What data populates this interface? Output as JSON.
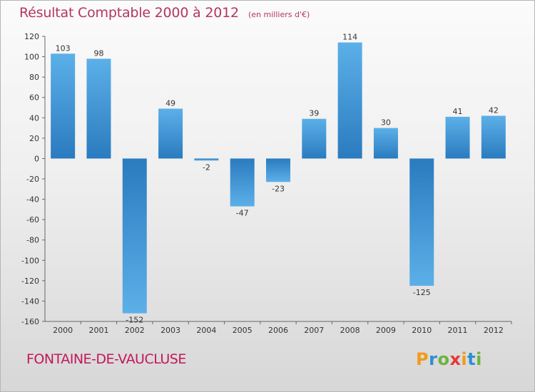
{
  "header": {
    "title": "Résultat Comptable 2000 à 2012",
    "subtitle": "(en milliers d'€)"
  },
  "footer": {
    "commune": "FONTAINE-DE-VAUCLUSE",
    "brand_letters": [
      "P",
      "r",
      "o",
      "x",
      "i",
      "t",
      "i"
    ],
    "brand_colors": [
      "#f29a1d",
      "#2e8ecf",
      "#6cb33f",
      "#e53935",
      "#f29a1d",
      "#2e8ecf",
      "#6cb33f"
    ]
  },
  "chart_data": {
    "type": "bar",
    "title": "Résultat Comptable 2000 à 2012",
    "subtitle": "(en milliers d'€)",
    "categories": [
      "2000",
      "2001",
      "2002",
      "2003",
      "2004",
      "2005",
      "2006",
      "2007",
      "2008",
      "2009",
      "2010",
      "2011",
      "2012"
    ],
    "values": [
      103,
      98,
      -152,
      49,
      -2,
      -47,
      -23,
      39,
      114,
      30,
      -125,
      41,
      42
    ],
    "data_labels": [
      "103",
      "98",
      "-152",
      "49",
      "-2",
      "-47",
      "-23",
      "39",
      "114",
      "30",
      "-125",
      "41",
      "42"
    ],
    "yticks": [
      120,
      100,
      80,
      60,
      40,
      20,
      0,
      -20,
      -40,
      -60,
      -80,
      -100,
      -120,
      -140,
      -160
    ],
    "ylim": [
      -160,
      120
    ],
    "grid": false,
    "colors": {
      "bar_dark": "#2a7bbf",
      "bar_light": "#5cb0e8",
      "axis": "#666666",
      "text": "#333333"
    }
  }
}
